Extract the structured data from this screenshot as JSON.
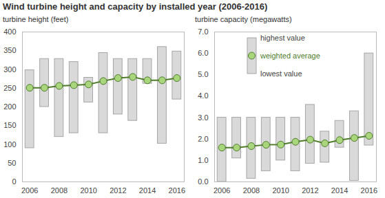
{
  "title": "Wind turbine height and capacity by installed year (2006-2016)",
  "chart_data": [
    {
      "type": "range_bar_line",
      "y_label": "turbine height (feet)",
      "x": [
        2006,
        2007,
        2008,
        2009,
        2010,
        2011,
        2012,
        2013,
        2014,
        2015,
        2016
      ],
      "xlim": [
        2005.5,
        2016.5
      ],
      "xticks": [
        2006,
        2008,
        2010,
        2012,
        2014,
        2016
      ],
      "ylim": [
        0,
        400
      ],
      "yticks": [
        0,
        50,
        100,
        150,
        200,
        250,
        300,
        350,
        400
      ],
      "grid": false,
      "series": [
        {
          "name": "highest value",
          "type": "range_high",
          "color": "#d9d9d9",
          "values": [
            298,
            328,
            328,
            320,
            278,
            344,
            328,
            328,
            328,
            360,
            348
          ]
        },
        {
          "name": "weighted average",
          "type": "line",
          "color": "#4e7c2a",
          "marker": "circle",
          "values": [
            251,
            251,
            256,
            258,
            260,
            269,
            277,
            280,
            271,
            271,
            277
          ]
        },
        {
          "name": "lowest value",
          "type": "range_low",
          "color": "#d9d9d9",
          "values": [
            90,
            200,
            120,
            130,
            212,
            130,
            180,
            163,
            262,
            102,
            220
          ]
        }
      ]
    },
    {
      "type": "range_bar_line",
      "y_label": "turbine capacity (megawatts)",
      "x": [
        2006,
        2007,
        2008,
        2009,
        2010,
        2011,
        2012,
        2013,
        2014,
        2015,
        2016
      ],
      "xlim": [
        2005.5,
        2016.5
      ],
      "xticks": [
        2006,
        2008,
        2010,
        2012,
        2014,
        2016
      ],
      "ylim": [
        0,
        7
      ],
      "yticks": [
        0,
        1,
        2,
        3,
        4,
        5,
        6,
        7
      ],
      "grid": false,
      "legend": "top-left",
      "series": [
        {
          "name": "highest value",
          "type": "range_high",
          "color": "#d9d9d9",
          "values": [
            3.0,
            3.0,
            3.0,
            3.0,
            3.0,
            3.0,
            3.6,
            2.35,
            2.85,
            3.3,
            6.0
          ]
        },
        {
          "name": "weighted average",
          "type": "line",
          "color": "#4e7c2a",
          "marker": "circle",
          "values": [
            1.6,
            1.6,
            1.67,
            1.73,
            1.74,
            1.87,
            1.97,
            1.8,
            1.95,
            2.05,
            2.15
          ]
        },
        {
          "name": "lowest value",
          "type": "range_low",
          "color": "#d9d9d9",
          "values": [
            0.0,
            1.1,
            0.15,
            0.5,
            1.0,
            0.5,
            0.85,
            0.9,
            1.6,
            0.05,
            1.7
          ]
        }
      ]
    }
  ]
}
